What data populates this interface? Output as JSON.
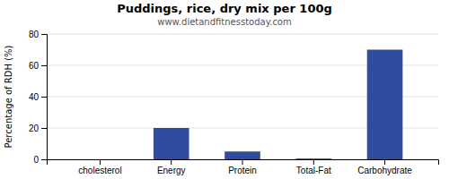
{
  "chart_data": {
    "type": "bar",
    "title": "Puddings, rice, dry mix per 100g",
    "subtitle": "www.dietandfitnesstoday.com",
    "categories": [
      "cholesterol",
      "Energy",
      "Protein",
      "Total-Fat",
      "Carbohydrate"
    ],
    "values": [
      0,
      20,
      5,
      0.5,
      70
    ],
    "color": "#2e4d9e",
    "ylabel": "Percentage of RDH (%)",
    "ylim": [
      0,
      80
    ],
    "yticks": [
      0,
      20,
      40,
      60,
      80
    ],
    "grid": true
  }
}
